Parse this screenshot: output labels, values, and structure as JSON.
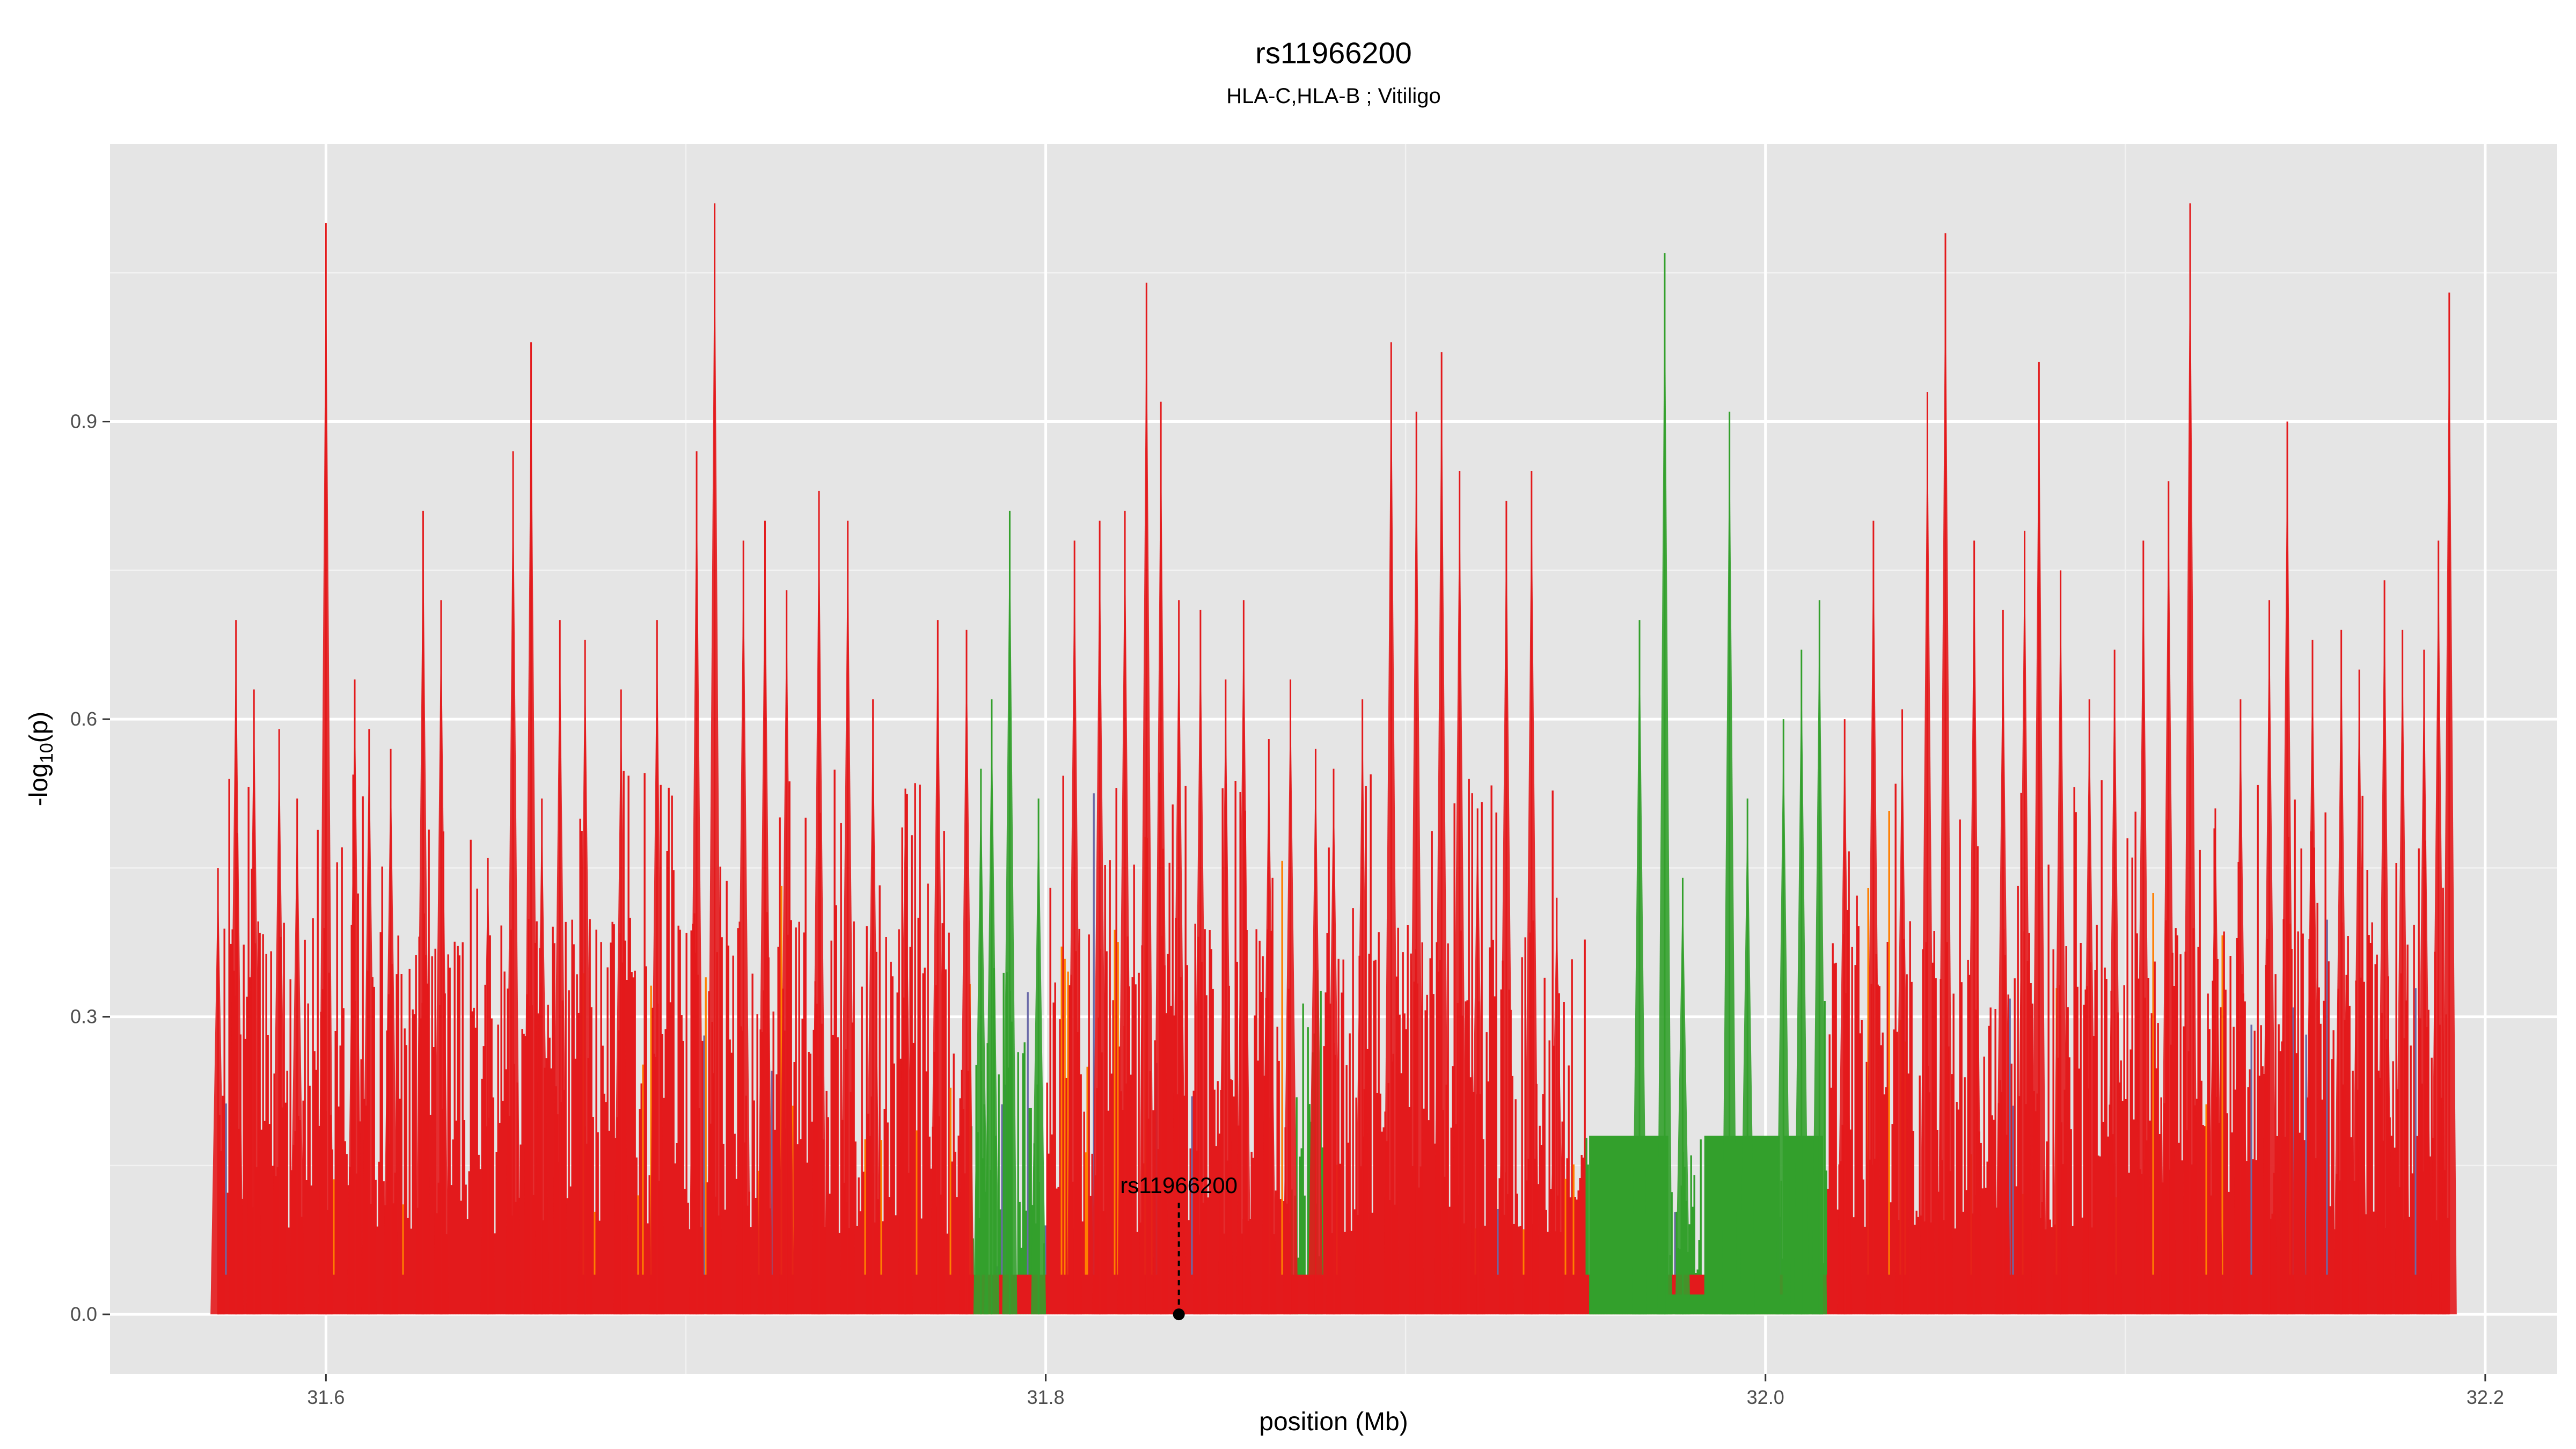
{
  "chart_data": {
    "type": "area",
    "title": "rs11966200",
    "subtitle": "HLA-C,HLA-B ; Vitiligo",
    "xlabel": "position (Mb)",
    "ylabel_main": "-log",
    "ylabel_sub": "10",
    "ylabel_tail": "(p)",
    "xlim": [
      31.54,
      32.22
    ],
    "ylim": [
      -0.06,
      1.18
    ],
    "x_ticks": [
      31.6,
      31.8,
      32.0,
      32.2
    ],
    "x_tick_labels": [
      "31.6",
      "31.8",
      "32.0",
      "32.2"
    ],
    "y_ticks": [
      0.0,
      0.3,
      0.6,
      0.9
    ],
    "y_tick_labels": [
      "0.0",
      "0.3",
      "0.6",
      "0.9"
    ],
    "grid": true,
    "background": "#e5e5e5",
    "colors": {
      "red": "#e31a1c",
      "green": "#33a02c",
      "orange": "#ff7f00",
      "blue": "#6a6aa8",
      "grid": "#ffffff"
    },
    "data_range_x": [
      31.57,
      32.19
    ],
    "series": [
      {
        "color_key": "red",
        "peak_x": [
          31.57,
          31.575,
          31.58,
          31.587,
          31.592,
          31.6,
          31.608,
          31.612,
          31.618,
          31.627,
          31.632,
          31.645,
          31.652,
          31.657,
          31.66,
          31.665,
          31.672,
          31.682,
          31.692,
          31.703,
          31.708,
          31.716,
          31.722,
          31.728,
          31.737,
          31.745,
          31.752,
          31.761,
          31.77,
          31.778,
          31.808,
          31.815,
          31.822,
          31.828,
          31.832,
          31.837,
          31.843,
          31.85,
          31.855,
          31.862,
          31.868,
          31.875,
          31.88,
          31.888,
          31.896,
          31.903,
          31.91,
          31.915,
          31.92,
          31.928,
          31.935,
          31.942,
          32.022,
          32.03,
          32.038,
          32.045,
          32.05,
          32.058,
          32.066,
          32.072,
          32.076,
          32.082,
          32.09,
          32.097,
          32.105,
          32.112,
          32.118,
          32.125,
          32.132,
          32.14,
          32.145,
          32.152,
          32.16,
          32.165,
          32.172,
          32.177,
          32.183,
          32.187,
          32.19
        ],
        "peak_y": [
          0.45,
          0.7,
          0.63,
          0.59,
          0.52,
          1.1,
          0.64,
          0.59,
          0.57,
          0.81,
          0.72,
          0.46,
          0.87,
          0.98,
          0.52,
          0.7,
          0.68,
          0.63,
          0.7,
          0.87,
          1.12,
          0.78,
          0.8,
          0.73,
          0.83,
          0.8,
          0.62,
          0.53,
          0.7,
          0.69,
          0.78,
          0.8,
          0.81,
          1.04,
          0.92,
          0.72,
          0.71,
          0.64,
          0.72,
          0.58,
          0.64,
          0.57,
          0.55,
          0.62,
          0.98,
          0.91,
          0.97,
          0.85,
          0.51,
          0.82,
          0.85,
          0.42,
          0.6,
          0.8,
          0.61,
          0.93,
          1.09,
          0.78,
          0.71,
          0.79,
          0.96,
          0.75,
          0.62,
          0.67,
          0.78,
          0.84,
          1.12,
          0.51,
          0.62,
          0.72,
          0.9,
          0.68,
          0.69,
          0.65,
          0.74,
          0.69,
          0.67,
          0.78,
          1.03
        ]
      },
      {
        "color_key": "green",
        "peak_x": [
          31.782,
          31.785,
          31.79,
          31.798,
          31.965,
          31.972,
          31.977,
          31.99,
          31.995,
          32.005,
          32.01,
          32.015
        ],
        "peak_y": [
          0.55,
          0.62,
          0.81,
          0.52,
          0.7,
          1.07,
          0.44,
          0.91,
          0.52,
          0.6,
          0.67,
          0.72
        ]
      }
    ],
    "blocks": [
      {
        "color_key": "green",
        "x": [
          31.951,
          31.973
        ],
        "y": 0.18
      },
      {
        "color_key": "green",
        "x": [
          31.983,
          32.004
        ],
        "y": 0.18
      },
      {
        "color_key": "green",
        "x": [
          32.005,
          32.016
        ],
        "y": 0.18
      }
    ],
    "annotation": {
      "label": "rs11966200",
      "x": 31.837,
      "y": 0.0,
      "label_y": 0.13
    }
  }
}
